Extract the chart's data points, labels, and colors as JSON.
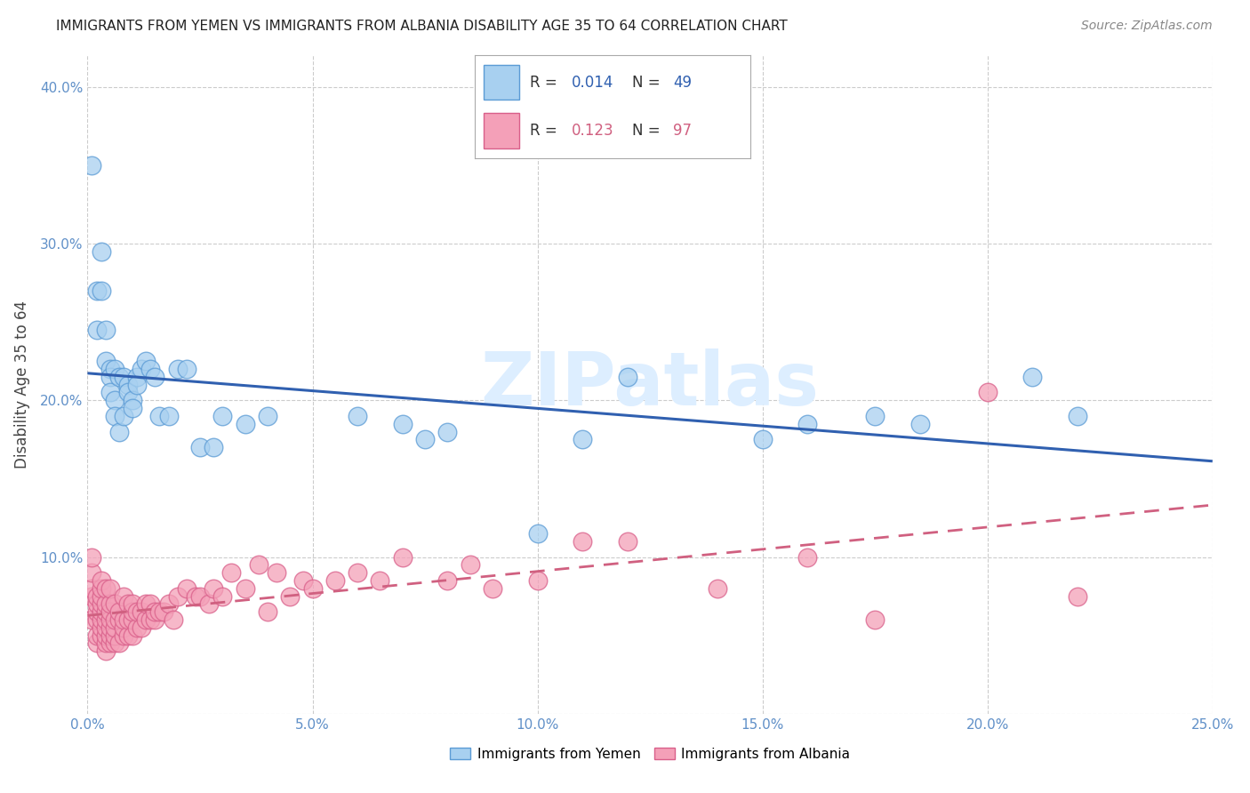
{
  "title": "IMMIGRANTS FROM YEMEN VS IMMIGRANTS FROM ALBANIA DISABILITY AGE 35 TO 64 CORRELATION CHART",
  "source": "Source: ZipAtlas.com",
  "ylabel": "Disability Age 35 to 64",
  "xlim": [
    0.0,
    0.25
  ],
  "ylim": [
    0.0,
    0.42
  ],
  "xticks": [
    0.0,
    0.05,
    0.1,
    0.15,
    0.2,
    0.25
  ],
  "yticks": [
    0.0,
    0.1,
    0.2,
    0.3,
    0.4
  ],
  "xticklabels": [
    "0.0%",
    "5.0%",
    "10.0%",
    "15.0%",
    "20.0%",
    "25.0%"
  ],
  "yticklabels": [
    "",
    "10.0%",
    "20.0%",
    "30.0%",
    "40.0%"
  ],
  "legend_label1": "Immigrants from Yemen",
  "legend_label2": "Immigrants from Albania",
  "R1": "0.014",
  "N1": "49",
  "R2": "0.123",
  "N2": "97",
  "color1": "#a8d0f0",
  "color2": "#f4a0b8",
  "edge_color1": "#5b9bd5",
  "edge_color2": "#d95f8a",
  "line_color1": "#3060b0",
  "line_color2": "#d06080",
  "tick_color": "#6090c8",
  "watermark_color": "#ddeeff",
  "yemen_x": [
    0.001,
    0.002,
    0.002,
    0.003,
    0.003,
    0.004,
    0.004,
    0.005,
    0.005,
    0.005,
    0.006,
    0.006,
    0.006,
    0.007,
    0.007,
    0.008,
    0.008,
    0.009,
    0.009,
    0.01,
    0.01,
    0.011,
    0.011,
    0.012,
    0.013,
    0.014,
    0.015,
    0.016,
    0.018,
    0.02,
    0.022,
    0.025,
    0.028,
    0.03,
    0.035,
    0.04,
    0.06,
    0.07,
    0.075,
    0.08,
    0.1,
    0.11,
    0.12,
    0.15,
    0.16,
    0.175,
    0.185,
    0.21,
    0.22
  ],
  "yemen_y": [
    0.35,
    0.27,
    0.245,
    0.295,
    0.27,
    0.245,
    0.225,
    0.22,
    0.215,
    0.205,
    0.22,
    0.2,
    0.19,
    0.215,
    0.18,
    0.215,
    0.19,
    0.21,
    0.205,
    0.2,
    0.195,
    0.215,
    0.21,
    0.22,
    0.225,
    0.22,
    0.215,
    0.19,
    0.19,
    0.22,
    0.22,
    0.17,
    0.17,
    0.19,
    0.185,
    0.19,
    0.19,
    0.185,
    0.175,
    0.18,
    0.115,
    0.175,
    0.215,
    0.175,
    0.185,
    0.19,
    0.185,
    0.215,
    0.19
  ],
  "albania_x": [
    0.001,
    0.001,
    0.001,
    0.001,
    0.001,
    0.002,
    0.002,
    0.002,
    0.002,
    0.002,
    0.002,
    0.003,
    0.003,
    0.003,
    0.003,
    0.003,
    0.003,
    0.003,
    0.003,
    0.004,
    0.004,
    0.004,
    0.004,
    0.004,
    0.004,
    0.004,
    0.004,
    0.005,
    0.005,
    0.005,
    0.005,
    0.005,
    0.005,
    0.005,
    0.006,
    0.006,
    0.006,
    0.006,
    0.006,
    0.007,
    0.007,
    0.007,
    0.008,
    0.008,
    0.008,
    0.008,
    0.009,
    0.009,
    0.009,
    0.01,
    0.01,
    0.01,
    0.01,
    0.011,
    0.011,
    0.012,
    0.012,
    0.013,
    0.013,
    0.014,
    0.014,
    0.015,
    0.015,
    0.016,
    0.017,
    0.018,
    0.019,
    0.02,
    0.022,
    0.024,
    0.025,
    0.027,
    0.028,
    0.03,
    0.032,
    0.035,
    0.038,
    0.04,
    0.042,
    0.045,
    0.048,
    0.05,
    0.055,
    0.06,
    0.065,
    0.07,
    0.08,
    0.085,
    0.09,
    0.1,
    0.11,
    0.12,
    0.14,
    0.16,
    0.175,
    0.2,
    0.22
  ],
  "albania_y": [
    0.06,
    0.075,
    0.08,
    0.09,
    0.1,
    0.045,
    0.05,
    0.06,
    0.065,
    0.07,
    0.075,
    0.05,
    0.055,
    0.06,
    0.065,
    0.07,
    0.075,
    0.08,
    0.085,
    0.04,
    0.045,
    0.05,
    0.055,
    0.06,
    0.065,
    0.07,
    0.08,
    0.045,
    0.05,
    0.055,
    0.06,
    0.065,
    0.07,
    0.08,
    0.045,
    0.05,
    0.055,
    0.06,
    0.07,
    0.045,
    0.06,
    0.065,
    0.05,
    0.055,
    0.06,
    0.075,
    0.05,
    0.06,
    0.07,
    0.05,
    0.06,
    0.065,
    0.07,
    0.055,
    0.065,
    0.055,
    0.065,
    0.06,
    0.07,
    0.06,
    0.07,
    0.06,
    0.065,
    0.065,
    0.065,
    0.07,
    0.06,
    0.075,
    0.08,
    0.075,
    0.075,
    0.07,
    0.08,
    0.075,
    0.09,
    0.08,
    0.095,
    0.065,
    0.09,
    0.075,
    0.085,
    0.08,
    0.085,
    0.09,
    0.085,
    0.1,
    0.085,
    0.095,
    0.08,
    0.085,
    0.11,
    0.11,
    0.08,
    0.1,
    0.06,
    0.205,
    0.075
  ]
}
